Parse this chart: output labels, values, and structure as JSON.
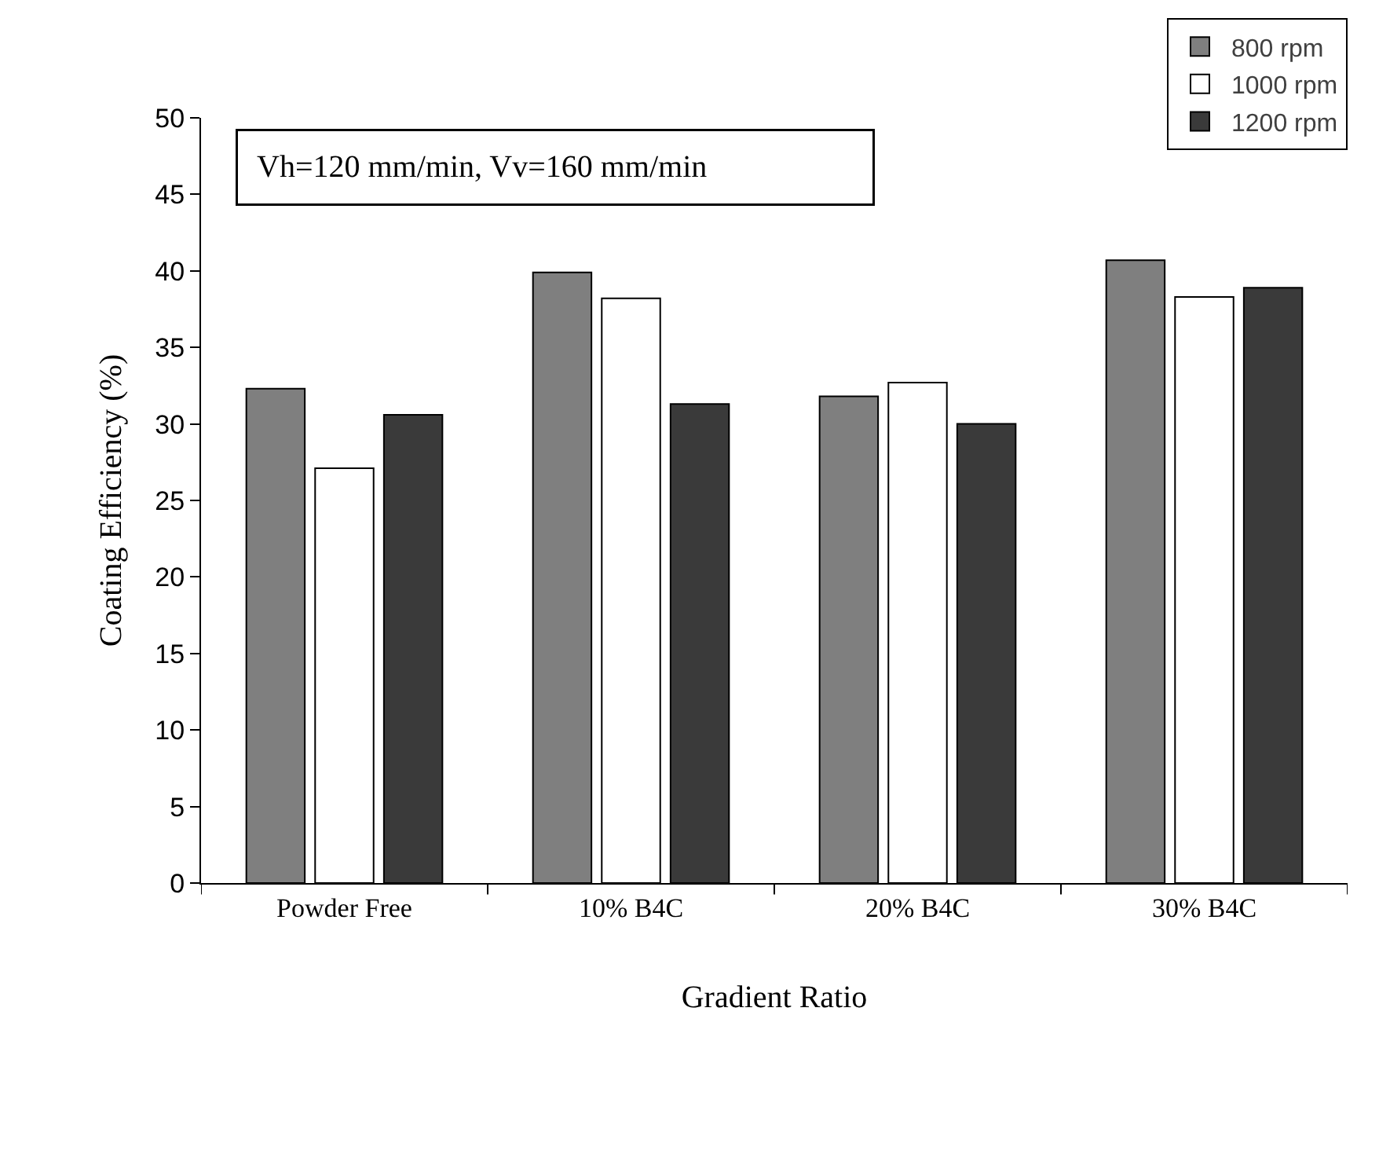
{
  "chart_data": {
    "type": "bar",
    "xlabel": "Gradient Ratio",
    "ylabel": "Coating Efficiency (%)",
    "categories": [
      "Powder Free",
      "10% B4C",
      "20% B4C",
      "30% B4C"
    ],
    "series": [
      {
        "name": "800 rpm",
        "color": "#7f7f7f",
        "values": [
          32.3,
          39.9,
          31.8,
          40.7
        ]
      },
      {
        "name": "1000 rpm",
        "color": "#ffffff",
        "values": [
          27.1,
          38.2,
          32.7,
          38.3
        ]
      },
      {
        "name": "1200 rpm",
        "color": "#3a3a3a",
        "values": [
          30.6,
          31.3,
          30.0,
          38.9
        ]
      }
    ],
    "ylim": [
      0,
      50
    ],
    "yticks": [
      0,
      5,
      10,
      15,
      20,
      25,
      30,
      35,
      40,
      45,
      50
    ],
    "annotations": [
      "Vh=120 mm/min, Vv=160 mm/min"
    ],
    "legend": "top right"
  }
}
